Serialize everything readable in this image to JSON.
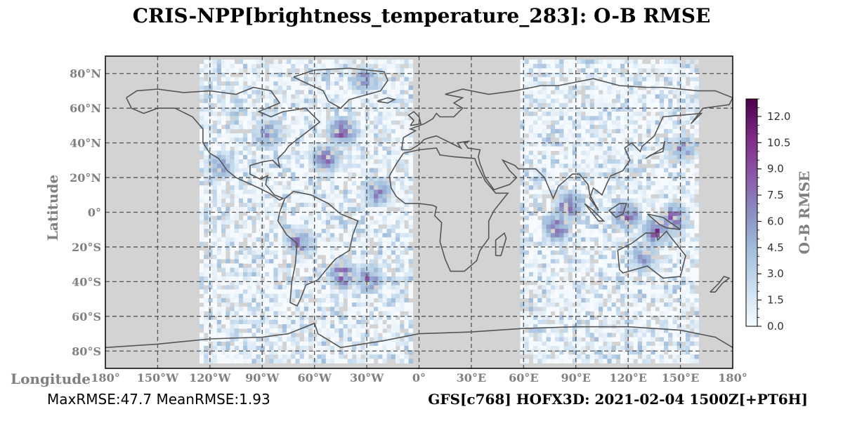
{
  "title": "CRIS-NPP[brightness_temperature_283]: O-B RMSE",
  "footer": {
    "stats": "MaxRMSE:47.7 MeanRMSE:1.93",
    "run": "GFS[c768] HOFX3D: 2021-02-04 1500Z[+PT6H]"
  },
  "colors": {
    "land_background": "#d3d3d3",
    "grid": "#555555",
    "coast": "#555555",
    "colormap": [
      "#f7fbff",
      "#cde0f0",
      "#a3bfdc",
      "#8a8fc2",
      "#8c57a8",
      "#7e2a84",
      "#4d004b"
    ]
  },
  "chart_data": {
    "type": "heatmap",
    "title": "CRIS-NPP[brightness_temperature_283]: O-B RMSE",
    "xlabel": "Longitude",
    "ylabel": "Latitude",
    "xlim": [
      -180,
      180
    ],
    "ylim": [
      -90,
      90
    ],
    "grid": true,
    "x_ticks": [
      -180,
      -150,
      -120,
      -90,
      -60,
      -30,
      0,
      30,
      60,
      90,
      120,
      150,
      180
    ],
    "x_tick_labels": [
      "180°",
      "150°W",
      "120°W",
      "90°W",
      "60°W",
      "30°W",
      "0°",
      "30°E",
      "60°E",
      "90°E",
      "120°E",
      "150°E",
      "180°"
    ],
    "y_ticks": [
      80,
      60,
      40,
      20,
      0,
      -20,
      -40,
      -60,
      -80
    ],
    "y_tick_labels": [
      "80°N",
      "60°N",
      "40°N",
      "20°N",
      "0°",
      "20°S",
      "40°S",
      "60°S",
      "80°S"
    ],
    "colorbar": {
      "label": "O-B RMSE",
      "vmin": 0,
      "vmax": 13,
      "ticks": [
        0.0,
        1.5,
        3.0,
        4.5,
        6.0,
        7.5,
        9.0,
        10.5,
        12.0
      ],
      "tick_labels": [
        "0.0",
        "1.5",
        "3.0",
        "4.5",
        "6.0",
        "7.5",
        "9.0",
        "10.5",
        "12.0"
      ]
    },
    "swaths": [
      {
        "lon_min": -126,
        "lon_max": -4,
        "lat_min": -85,
        "lat_max": 88
      },
      {
        "lon_min": 58,
        "lon_max": 160,
        "lat_min": -85,
        "lat_max": 88
      }
    ],
    "hotspots": [
      {
        "lon": -45,
        "lat": -35,
        "value": 12
      },
      {
        "lon": -30,
        "lat": -37,
        "value": 10
      },
      {
        "lon": -55,
        "lat": 32,
        "value": 11
      },
      {
        "lon": -45,
        "lat": 48,
        "value": 12
      },
      {
        "lon": -88,
        "lat": 46,
        "value": 10
      },
      {
        "lon": -25,
        "lat": 13,
        "value": 11
      },
      {
        "lon": 85,
        "lat": 5,
        "value": 12
      },
      {
        "lon": 118,
        "lat": 0,
        "value": 12
      },
      {
        "lon": 135,
        "lat": -10,
        "value": 12
      },
      {
        "lon": 145,
        "lat": -2,
        "value": 11
      },
      {
        "lon": 78,
        "lat": -8,
        "value": 11
      },
      {
        "lon": 128,
        "lat": -25,
        "value": 9
      },
      {
        "lon": -70,
        "lat": -16,
        "value": 10
      },
      {
        "lon": -115,
        "lat": 28,
        "value": 8
      },
      {
        "lon": 150,
        "lat": 38,
        "value": 9
      },
      {
        "lon": -33,
        "lat": 78,
        "value": 9
      }
    ]
  }
}
